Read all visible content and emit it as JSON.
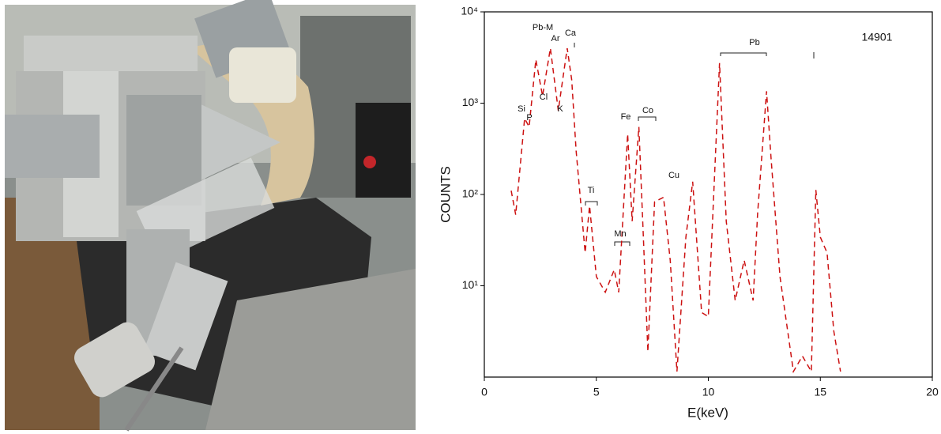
{
  "chart_data": {
    "type": "line",
    "xlabel": "E(keV)",
    "ylabel": "COUNTS",
    "color": "#cc1111",
    "log_y": true,
    "xlim": [
      0,
      20
    ],
    "xticks": [
      0,
      5,
      10,
      15,
      20
    ],
    "ylim": [
      1,
      10000
    ],
    "yticks": [
      {
        "value": 10,
        "label": "10¹"
      },
      {
        "value": 100,
        "label": "10²"
      },
      {
        "value": 1000,
        "label": "10³"
      },
      {
        "value": 10000,
        "label": "10⁴"
      }
    ],
    "x": [
      1.2,
      1.4,
      1.8,
      2.0,
      2.3,
      2.6,
      2.95,
      3.3,
      3.7,
      3.9,
      4.1,
      4.5,
      4.7,
      5.0,
      5.4,
      5.8,
      6.0,
      6.4,
      6.6,
      6.9,
      7.1,
      7.3,
      7.6,
      8.0,
      8.3,
      8.6,
      9.0,
      9.3,
      9.7,
      10.0,
      10.5,
      10.8,
      11.2,
      11.6,
      12.0,
      12.2,
      12.6,
      12.8,
      13.2,
      13.5,
      13.8,
      14.2,
      14.6,
      14.8,
      15.0,
      15.3,
      15.6,
      15.9
    ],
    "values": [
      110,
      60,
      680,
      550,
      3000,
      1200,
      4000,
      830,
      4000,
      1800,
      300,
      23,
      75,
      12.6,
      8.5,
      15,
      8.5,
      460,
      51,
      550,
      34,
      1.9,
      83,
      93,
      19,
      1.15,
      34,
      138,
      5.1,
      4.6,
      2750,
      51,
      6.9,
      19,
      6.9,
      62,
      1350,
      250,
      12.6,
      3.8,
      1.15,
      1.7,
      1.15,
      112,
      34,
      23,
      3.2,
      1.15
    ],
    "annotations": [
      "Pb-M",
      "Ar",
      "Ca",
      "Si",
      "P",
      "Cl",
      "K",
      "Fe",
      "Co",
      "Cu",
      "Ti",
      "Mn",
      "Pb",
      "14901"
    ]
  }
}
